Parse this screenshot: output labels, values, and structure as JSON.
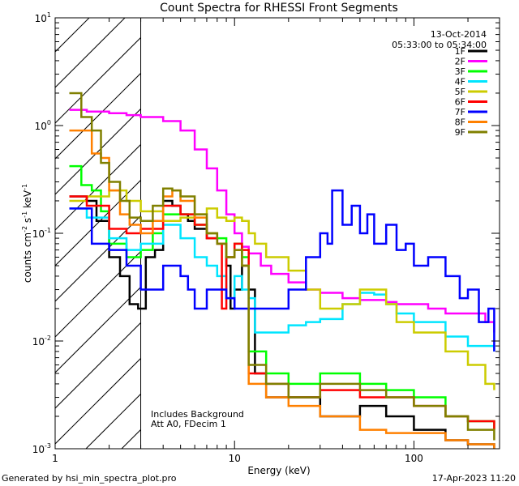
{
  "chart_data": {
    "type": "line",
    "title": "Count Spectra for RHESSI Front Segments",
    "xlabel": "Energy (keV)",
    "ylabel_base": "counts cm",
    "ylabel_exp1": "-2",
    "ylabel_mid1": " s",
    "ylabel_exp2": "-1",
    "ylabel_mid2": " keV",
    "ylabel_exp3": "-1",
    "xscale": "log",
    "yscale": "log",
    "xlim": [
      1,
      300
    ],
    "ylim": [
      0.001,
      10
    ],
    "x_ticks": [
      1,
      10,
      100
    ],
    "x_tick_labels": [
      "1",
      "10",
      "100"
    ],
    "y_ticks": [
      0.001,
      0.01,
      0.1,
      1,
      10
    ],
    "y_tick_labels": [
      {
        "base": "10",
        "exp": "-3"
      },
      {
        "base": "10",
        "exp": "-2"
      },
      {
        "base": "10",
        "exp": "-1"
      },
      {
        "base": "10",
        "exp": "0"
      },
      {
        "base": "10",
        "exp": "1"
      }
    ],
    "hatched_region": [
      1,
      3
    ],
    "date": "13-Oct-2014",
    "time_range": "05:33:00 to 05:34:00",
    "annotation_line1": "Includes Background",
    "annotation_line2": "Att A0, FDecim 1",
    "legend_position": "top-right",
    "series": [
      {
        "name": "1F",
        "color": "#000000",
        "points": [
          [
            1.2,
            0.22
          ],
          [
            1.5,
            0.2
          ],
          [
            1.7,
            0.13
          ],
          [
            2.0,
            0.06
          ],
          [
            2.3,
            0.04
          ],
          [
            2.6,
            0.022
          ],
          [
            2.9,
            0.02
          ],
          [
            3.2,
            0.06
          ],
          [
            3.6,
            0.07
          ],
          [
            4.0,
            0.2
          ],
          [
            4.5,
            0.18
          ],
          [
            5.0,
            0.15
          ],
          [
            5.5,
            0.13
          ],
          [
            6.0,
            0.11
          ],
          [
            7.0,
            0.09
          ],
          [
            8.0,
            0.08
          ],
          [
            9.0,
            0.05
          ],
          [
            9.5,
            0.02
          ],
          [
            10.0,
            0.03
          ],
          [
            11.0,
            0.05
          ],
          [
            12.0,
            0.03
          ],
          [
            13.0,
            0.005
          ],
          [
            15.0,
            0.003
          ],
          [
            20.0,
            0.003
          ],
          [
            30.0,
            0.002
          ],
          [
            50.0,
            0.0025
          ],
          [
            70.0,
            0.002
          ],
          [
            100.0,
            0.0015
          ],
          [
            150.0,
            0.0012
          ],
          [
            200.0,
            0.0011
          ],
          [
            280.0,
            0.001
          ]
        ]
      },
      {
        "name": "2F",
        "color": "#ff00ff",
        "points": [
          [
            1.2,
            1.4
          ],
          [
            1.5,
            1.35
          ],
          [
            2.0,
            1.3
          ],
          [
            2.5,
            1.25
          ],
          [
            3.0,
            1.2
          ],
          [
            4.0,
            1.1
          ],
          [
            5.0,
            0.9
          ],
          [
            6.0,
            0.6
          ],
          [
            7.0,
            0.4
          ],
          [
            8.0,
            0.25
          ],
          [
            9.0,
            0.15
          ],
          [
            10.0,
            0.1
          ],
          [
            11.0,
            0.075
          ],
          [
            12.0,
            0.065
          ],
          [
            14.0,
            0.05
          ],
          [
            16.0,
            0.042
          ],
          [
            20.0,
            0.035
          ],
          [
            25.0,
            0.03
          ],
          [
            30.0,
            0.028
          ],
          [
            40.0,
            0.025
          ],
          [
            50.0,
            0.024
          ],
          [
            60.0,
            0.024
          ],
          [
            70.0,
            0.023
          ],
          [
            80.0,
            0.022
          ],
          [
            100.0,
            0.022
          ],
          [
            120.0,
            0.02
          ],
          [
            150.0,
            0.018
          ],
          [
            200.0,
            0.018
          ],
          [
            250.0,
            0.015
          ],
          [
            280.0,
            0.012
          ]
        ]
      },
      {
        "name": "3F",
        "color": "#00ff00",
        "points": [
          [
            1.2,
            0.42
          ],
          [
            1.4,
            0.28
          ],
          [
            1.6,
            0.25
          ],
          [
            1.8,
            0.16
          ],
          [
            2.0,
            0.08
          ],
          [
            2.5,
            0.06
          ],
          [
            3.0,
            0.07
          ],
          [
            3.5,
            0.1
          ],
          [
            4.0,
            0.15
          ],
          [
            5.0,
            0.15
          ],
          [
            6.0,
            0.12
          ],
          [
            7.0,
            0.1
          ],
          [
            8.0,
            0.09
          ],
          [
            9.0,
            0.06
          ],
          [
            10.0,
            0.08
          ],
          [
            11.0,
            0.06
          ],
          [
            12.0,
            0.008
          ],
          [
            15.0,
            0.005
          ],
          [
            20.0,
            0.004
          ],
          [
            30.0,
            0.005
          ],
          [
            50.0,
            0.004
          ],
          [
            70.0,
            0.0035
          ],
          [
            100.0,
            0.003
          ],
          [
            150.0,
            0.002
          ],
          [
            200.0,
            0.0018
          ],
          [
            280.0,
            0.0015
          ]
        ]
      },
      {
        "name": "4F",
        "color": "#00e5ff",
        "points": [
          [
            1.2,
            0.17
          ],
          [
            1.5,
            0.14
          ],
          [
            2.0,
            0.09
          ],
          [
            2.5,
            0.07
          ],
          [
            3.0,
            0.08
          ],
          [
            4.0,
            0.12
          ],
          [
            5.0,
            0.09
          ],
          [
            6.0,
            0.06
          ],
          [
            7.0,
            0.05
          ],
          [
            8.0,
            0.04
          ],
          [
            9.0,
            0.025
          ],
          [
            10.0,
            0.04
          ],
          [
            11.0,
            0.03
          ],
          [
            12.0,
            0.025
          ],
          [
            13.0,
            0.012
          ],
          [
            15.0,
            0.012
          ],
          [
            20.0,
            0.014
          ],
          [
            25.0,
            0.015
          ],
          [
            30.0,
            0.016
          ],
          [
            40.0,
            0.022
          ],
          [
            50.0,
            0.028
          ],
          [
            60.0,
            0.027
          ],
          [
            70.0,
            0.022
          ],
          [
            80.0,
            0.018
          ],
          [
            100.0,
            0.015
          ],
          [
            150.0,
            0.011
          ],
          [
            200.0,
            0.009
          ],
          [
            280.0,
            0.008
          ]
        ]
      },
      {
        "name": "5F",
        "color": "#cccc00",
        "points": [
          [
            1.2,
            0.2
          ],
          [
            1.5,
            0.22
          ],
          [
            2.0,
            0.25
          ],
          [
            2.5,
            0.2
          ],
          [
            3.0,
            0.16
          ],
          [
            4.0,
            0.13
          ],
          [
            5.0,
            0.14
          ],
          [
            6.0,
            0.15
          ],
          [
            7.0,
            0.17
          ],
          [
            8.0,
            0.14
          ],
          [
            9.0,
            0.13
          ],
          [
            10.0,
            0.14
          ],
          [
            11.0,
            0.13
          ],
          [
            12.0,
            0.1
          ],
          [
            13.0,
            0.08
          ],
          [
            15.0,
            0.06
          ],
          [
            20.0,
            0.045
          ],
          [
            25.0,
            0.03
          ],
          [
            30.0,
            0.02
          ],
          [
            40.0,
            0.022
          ],
          [
            50.0,
            0.03
          ],
          [
            60.0,
            0.03
          ],
          [
            70.0,
            0.022
          ],
          [
            80.0,
            0.015
          ],
          [
            100.0,
            0.012
          ],
          [
            150.0,
            0.008
          ],
          [
            200.0,
            0.006
          ],
          [
            250.0,
            0.004
          ],
          [
            280.0,
            0.0035
          ]
        ]
      },
      {
        "name": "6F",
        "color": "#ff0000",
        "points": [
          [
            1.2,
            0.22
          ],
          [
            1.5,
            0.18
          ],
          [
            2.0,
            0.11
          ],
          [
            2.5,
            0.1
          ],
          [
            3.0,
            0.11
          ],
          [
            4.0,
            0.18
          ],
          [
            5.0,
            0.15
          ],
          [
            6.0,
            0.12
          ],
          [
            7.0,
            0.09
          ],
          [
            8.0,
            0.08
          ],
          [
            8.5,
            0.02
          ],
          [
            9.0,
            0.06
          ],
          [
            10.0,
            0.08
          ],
          [
            11.0,
            0.07
          ],
          [
            12.0,
            0.005
          ],
          [
            15.0,
            0.004
          ],
          [
            20.0,
            0.003
          ],
          [
            30.0,
            0.0035
          ],
          [
            50.0,
            0.003
          ],
          [
            70.0,
            0.003
          ],
          [
            100.0,
            0.0025
          ],
          [
            150.0,
            0.002
          ],
          [
            200.0,
            0.0018
          ],
          [
            280.0,
            0.0015
          ]
        ]
      },
      {
        "name": "7F",
        "color": "#0000ff",
        "points": [
          [
            1.2,
            0.17
          ],
          [
            1.6,
            0.08
          ],
          [
            2.0,
            0.07
          ],
          [
            2.5,
            0.05
          ],
          [
            3.0,
            0.03
          ],
          [
            4.0,
            0.05
          ],
          [
            5.0,
            0.04
          ],
          [
            5.5,
            0.03
          ],
          [
            6.0,
            0.02
          ],
          [
            7.0,
            0.03
          ],
          [
            8.0,
            0.03
          ],
          [
            9.0,
            0.025
          ],
          [
            10.0,
            0.02
          ],
          [
            15.0,
            0.02
          ],
          [
            20.0,
            0.03
          ],
          [
            25.0,
            0.06
          ],
          [
            30.0,
            0.1
          ],
          [
            33.0,
            0.08
          ],
          [
            35.0,
            0.25
          ],
          [
            40.0,
            0.12
          ],
          [
            45.0,
            0.18
          ],
          [
            50.0,
            0.1
          ],
          [
            55.0,
            0.15
          ],
          [
            60.0,
            0.08
          ],
          [
            70.0,
            0.12
          ],
          [
            80.0,
            0.07
          ],
          [
            90.0,
            0.08
          ],
          [
            100.0,
            0.05
          ],
          [
            120.0,
            0.06
          ],
          [
            150.0,
            0.04
          ],
          [
            180.0,
            0.025
          ],
          [
            200.0,
            0.03
          ],
          [
            230.0,
            0.015
          ],
          [
            260.0,
            0.02
          ],
          [
            280.0,
            0.008
          ]
        ]
      },
      {
        "name": "8F",
        "color": "#ff8000",
        "points": [
          [
            1.2,
            0.9
          ],
          [
            1.4,
            0.9
          ],
          [
            1.6,
            0.55
          ],
          [
            1.8,
            0.5
          ],
          [
            2.0,
            0.25
          ],
          [
            2.3,
            0.15
          ],
          [
            2.6,
            0.12
          ],
          [
            3.0,
            0.1
          ],
          [
            3.5,
            0.13
          ],
          [
            4.0,
            0.22
          ],
          [
            4.5,
            0.25
          ],
          [
            5.0,
            0.2
          ],
          [
            6.0,
            0.14
          ],
          [
            7.0,
            0.1
          ],
          [
            8.0,
            0.08
          ],
          [
            9.0,
            0.06
          ],
          [
            10.0,
            0.07
          ],
          [
            11.0,
            0.05
          ],
          [
            12.0,
            0.004
          ],
          [
            15.0,
            0.003
          ],
          [
            20.0,
            0.0025
          ],
          [
            30.0,
            0.002
          ],
          [
            50.0,
            0.0015
          ],
          [
            70.0,
            0.0014
          ],
          [
            100.0,
            0.0014
          ],
          [
            150.0,
            0.0012
          ],
          [
            200.0,
            0.0011
          ],
          [
            280.0,
            0.001
          ]
        ]
      },
      {
        "name": "9F",
        "color": "#808000",
        "points": [
          [
            1.2,
            2.0
          ],
          [
            1.4,
            1.2
          ],
          [
            1.6,
            0.9
          ],
          [
            1.8,
            0.45
          ],
          [
            2.0,
            0.3
          ],
          [
            2.3,
            0.2
          ],
          [
            2.6,
            0.14
          ],
          [
            3.0,
            0.13
          ],
          [
            3.5,
            0.18
          ],
          [
            4.0,
            0.26
          ],
          [
            4.5,
            0.25
          ],
          [
            5.0,
            0.22
          ],
          [
            6.0,
            0.15
          ],
          [
            7.0,
            0.1
          ],
          [
            8.0,
            0.08
          ],
          [
            9.0,
            0.06
          ],
          [
            10.0,
            0.07
          ],
          [
            11.0,
            0.05
          ],
          [
            12.0,
            0.006
          ],
          [
            15.0,
            0.004
          ],
          [
            20.0,
            0.003
          ],
          [
            30.0,
            0.004
          ],
          [
            50.0,
            0.0035
          ],
          [
            70.0,
            0.003
          ],
          [
            100.0,
            0.0025
          ],
          [
            150.0,
            0.002
          ],
          [
            200.0,
            0.0015
          ],
          [
            280.0,
            0.0012
          ]
        ]
      }
    ]
  },
  "footer": {
    "generated_by": "Generated by hsi_min_spectra_plot.pro",
    "timestamp": "17-Apr-2023 11:20"
  }
}
